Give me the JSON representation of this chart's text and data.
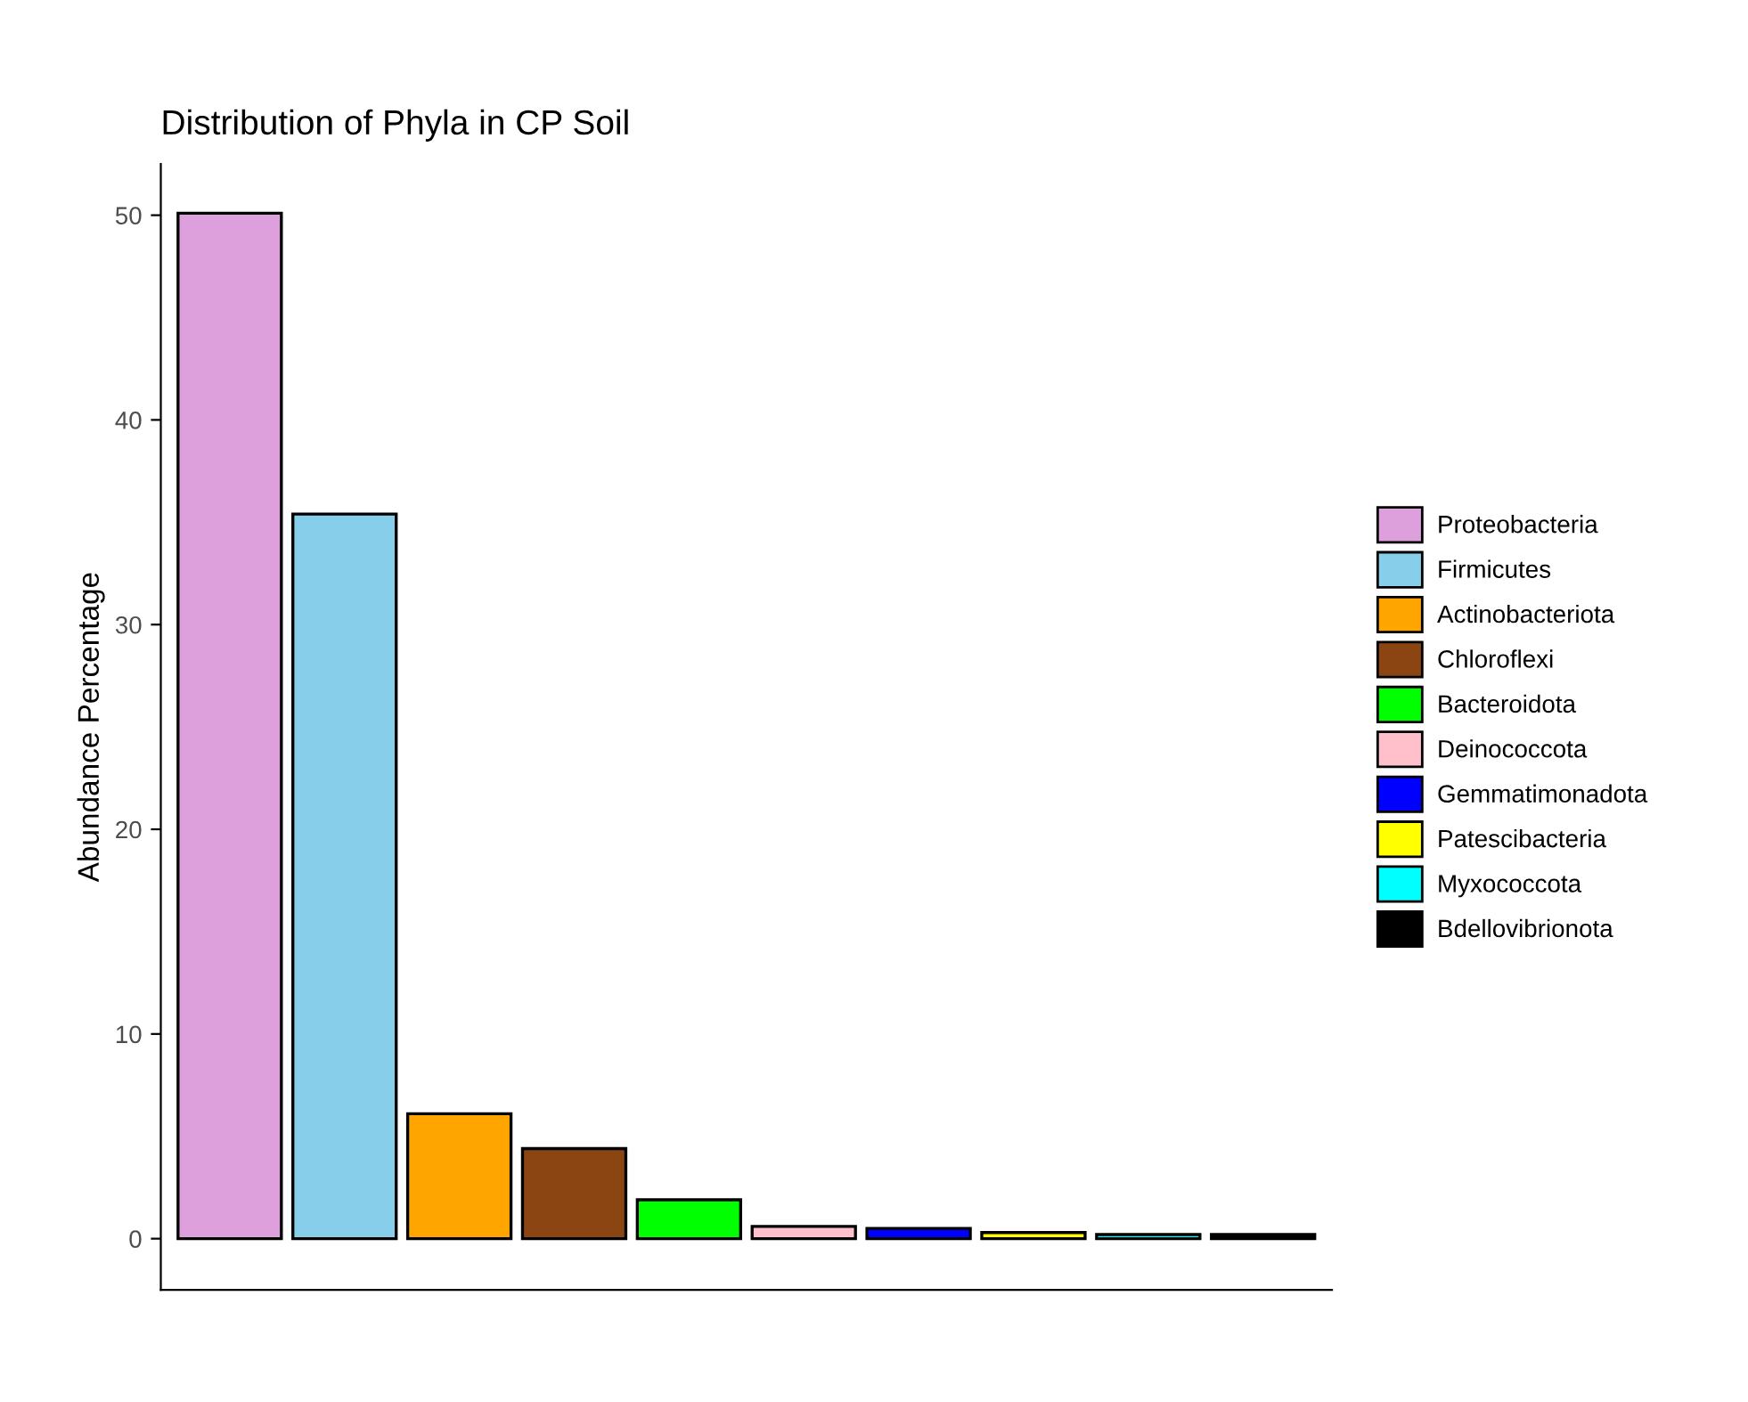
{
  "chart_data": {
    "type": "bar",
    "title": "Distribution of Phyla in CP Soil",
    "ylabel": "Abundance Percentage",
    "categories": [
      null,
      null,
      null,
      null,
      null,
      null,
      null,
      null,
      null,
      null
    ],
    "series": [
      {
        "name": "Proteobacteria",
        "color": "#dda0dd",
        "values": [
          50.1,
          null,
          null,
          null,
          null,
          null,
          null,
          null,
          null,
          null
        ]
      },
      {
        "name": "Firmicutes",
        "color": "#87ceeb",
        "values": [
          null,
          35.4,
          null,
          null,
          null,
          null,
          null,
          null,
          null,
          null
        ]
      },
      {
        "name": "Actinobacteriota",
        "color": "#ffa500",
        "values": [
          null,
          null,
          6.1,
          null,
          null,
          null,
          null,
          null,
          null,
          null
        ]
      },
      {
        "name": "Chloroflexi",
        "color": "#8b4513",
        "values": [
          null,
          null,
          null,
          4.4,
          null,
          null,
          null,
          null,
          null,
          null
        ]
      },
      {
        "name": "Bacteroidota",
        "color": "#00ff00",
        "values": [
          null,
          null,
          null,
          null,
          1.9,
          null,
          null,
          null,
          null,
          null
        ]
      },
      {
        "name": "Deinococcota",
        "color": "#ffc0cb",
        "values": [
          null,
          null,
          null,
          null,
          null,
          0.6,
          null,
          null,
          null,
          null
        ]
      },
      {
        "name": "Gemmatimonadota",
        "color": "#0000ff",
        "values": [
          null,
          null,
          null,
          null,
          null,
          null,
          0.5,
          null,
          null,
          null
        ]
      },
      {
        "name": "Patescibacteria",
        "color": "#ffff00",
        "values": [
          null,
          null,
          null,
          null,
          null,
          null,
          null,
          0.3,
          null,
          null
        ]
      },
      {
        "name": "Myxococcota",
        "color": "#00ffff",
        "values": [
          null,
          null,
          null,
          null,
          null,
          null,
          null,
          null,
          0.2,
          null
        ]
      },
      {
        "name": "Bdellovibrionota",
        "color": "#000000",
        "values": [
          null,
          null,
          null,
          null,
          null,
          null,
          null,
          null,
          null,
          0.2
        ]
      }
    ],
    "ylim": [
      -2.5,
      52.5
    ],
    "yticks": [
      0,
      10,
      20,
      30,
      40,
      50
    ],
    "tick_labels": "y",
    "grid": false,
    "legend": "right"
  }
}
